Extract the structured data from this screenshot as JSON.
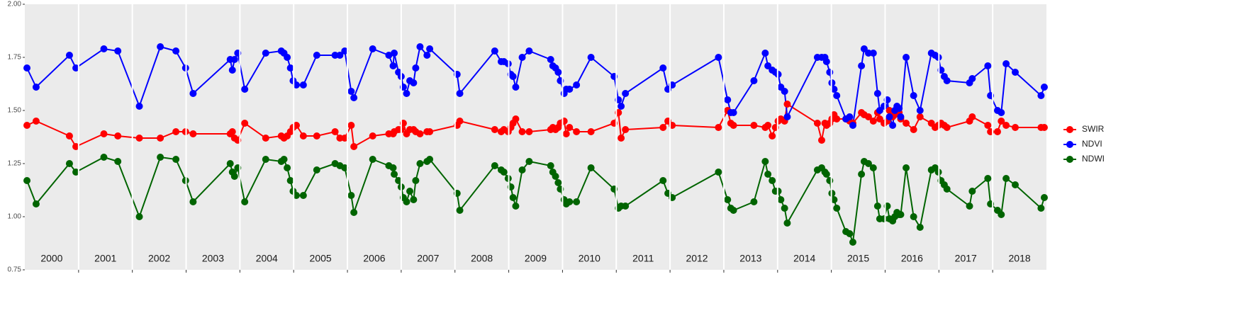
{
  "chart_data": {
    "type": "line",
    "x": [
      2000.04,
      2000.21,
      2000.83,
      2000.95,
      2001.47,
      2001.73,
      2002.13,
      2002.52,
      2002.81,
      2002.99,
      2003.13,
      2003.82,
      2003.86,
      2003.9,
      2003.96,
      2004.09,
      2004.48,
      2004.77,
      2004.82,
      2004.88,
      2004.94,
      2004.99,
      2005.05,
      2005.18,
      2005.43,
      2005.77,
      2005.86,
      2005.95,
      2006.07,
      2006.12,
      2006.47,
      2006.77,
      2006.85,
      2006.87,
      2006.95,
      2007.0,
      2007.04,
      2007.1,
      2007.16,
      2007.23,
      2007.27,
      2007.35,
      2007.48,
      2007.53,
      2008.04,
      2008.09,
      2008.74,
      2008.86,
      2008.91,
      2008.99,
      2009.04,
      2009.08,
      2009.13,
      2009.25,
      2009.38,
      2009.78,
      2009.82,
      2009.87,
      2009.92,
      2009.96,
      2010.03,
      2010.07,
      2010.13,
      2010.26,
      2010.53,
      2010.96,
      2011.04,
      2011.09,
      2011.17,
      2011.87,
      2011.96,
      2012.04,
      2012.9,
      2013.07,
      2013.13,
      2013.18,
      2013.56,
      2013.77,
      2013.82,
      2013.9,
      2013.96,
      2014.01,
      2014.06,
      2014.13,
      2014.18,
      2014.74,
      2014.82,
      2014.88,
      2014.91,
      2014.97,
      2015.01,
      2015.05,
      2015.1,
      2015.27,
      2015.34,
      2015.4,
      2015.56,
      2015.61,
      2015.69,
      2015.78,
      2015.86,
      2015.9,
      2015.98,
      2016.04,
      2016.08,
      2016.14,
      2016.18,
      2016.22,
      2016.26,
      2016.29,
      2016.39,
      2016.53,
      2016.65,
      2016.86,
      2016.93,
      2016.99,
      2017.04,
      2017.1,
      2017.15,
      2017.57,
      2017.62,
      2017.91,
      2017.96,
      2018.09,
      2018.16,
      2018.25,
      2018.42,
      2018.9,
      2018.96
    ],
    "series": [
      {
        "name": "SWIR",
        "color": "#ff0000",
        "values": [
          1.43,
          1.45,
          1.38,
          1.33,
          1.39,
          1.38,
          1.37,
          1.37,
          1.4,
          1.4,
          1.39,
          1.39,
          1.4,
          1.37,
          1.36,
          1.44,
          1.37,
          1.38,
          1.37,
          1.38,
          1.4,
          1.42,
          1.43,
          1.38,
          1.38,
          1.4,
          1.37,
          1.37,
          1.43,
          1.33,
          1.38,
          1.39,
          1.39,
          1.4,
          1.41,
          1.41,
          1.44,
          1.39,
          1.41,
          1.41,
          1.4,
          1.39,
          1.4,
          1.4,
          1.43,
          1.45,
          1.41,
          1.4,
          1.41,
          1.4,
          1.42,
          1.44,
          1.46,
          1.4,
          1.4,
          1.41,
          1.42,
          1.41,
          1.42,
          1.44,
          1.45,
          1.39,
          1.42,
          1.4,
          1.4,
          1.44,
          1.49,
          1.37,
          1.41,
          1.42,
          1.45,
          1.43,
          1.42,
          1.5,
          1.44,
          1.43,
          1.43,
          1.42,
          1.43,
          1.38,
          1.42,
          1.45,
          1.46,
          1.45,
          1.53,
          1.44,
          1.36,
          1.44,
          1.43,
          1.44,
          1.46,
          1.48,
          1.46,
          1.46,
          1.45,
          1.44,
          1.49,
          1.48,
          1.47,
          1.45,
          1.49,
          1.46,
          1.44,
          1.45,
          1.5,
          1.47,
          1.48,
          1.49,
          1.49,
          1.46,
          1.44,
          1.41,
          1.47,
          1.44,
          1.42,
          1.43,
          1.44,
          1.43,
          1.42,
          1.45,
          1.47,
          1.43,
          1.4,
          1.4,
          1.45,
          1.43,
          1.42,
          1.42,
          1.42
        ]
      },
      {
        "name": "NDVI",
        "color": "#0000ff",
        "values": [
          1.7,
          1.61,
          1.76,
          1.7,
          1.79,
          1.78,
          1.52,
          1.8,
          1.78,
          1.7,
          1.58,
          1.74,
          1.69,
          1.74,
          1.77,
          1.6,
          1.77,
          1.78,
          1.77,
          1.75,
          1.7,
          1.64,
          1.62,
          1.62,
          1.76,
          1.76,
          1.76,
          1.78,
          1.59,
          1.56,
          1.79,
          1.76,
          1.71,
          1.77,
          1.68,
          1.66,
          1.61,
          1.58,
          1.64,
          1.63,
          1.7,
          1.8,
          1.76,
          1.79,
          1.67,
          1.58,
          1.78,
          1.73,
          1.73,
          1.72,
          1.67,
          1.66,
          1.61,
          1.75,
          1.78,
          1.74,
          1.71,
          1.7,
          1.68,
          1.64,
          1.58,
          1.6,
          1.6,
          1.62,
          1.75,
          1.66,
          1.55,
          1.52,
          1.58,
          1.7,
          1.6,
          1.62,
          1.75,
          1.55,
          1.49,
          1.49,
          1.64,
          1.77,
          1.71,
          1.69,
          1.68,
          1.67,
          1.61,
          1.59,
          1.47,
          1.75,
          1.75,
          1.75,
          1.73,
          1.68,
          1.63,
          1.6,
          1.57,
          1.46,
          1.47,
          1.43,
          1.71,
          1.79,
          1.77,
          1.77,
          1.58,
          1.5,
          1.52,
          1.55,
          1.47,
          1.43,
          1.5,
          1.52,
          1.51,
          1.47,
          1.75,
          1.57,
          1.5,
          1.77,
          1.76,
          1.75,
          1.69,
          1.66,
          1.64,
          1.63,
          1.65,
          1.71,
          1.57,
          1.5,
          1.49,
          1.72,
          1.68,
          1.57,
          1.61
        ]
      },
      {
        "name": "NDWI",
        "color": "#006400",
        "values": [
          1.17,
          1.06,
          1.25,
          1.21,
          1.28,
          1.26,
          1.0,
          1.28,
          1.27,
          1.17,
          1.07,
          1.25,
          1.21,
          1.19,
          1.23,
          1.07,
          1.27,
          1.26,
          1.27,
          1.23,
          1.17,
          1.12,
          1.1,
          1.1,
          1.22,
          1.25,
          1.24,
          1.23,
          1.1,
          1.02,
          1.27,
          1.24,
          1.23,
          1.2,
          1.17,
          1.14,
          1.09,
          1.07,
          1.12,
          1.08,
          1.17,
          1.25,
          1.26,
          1.27,
          1.11,
          1.03,
          1.24,
          1.22,
          1.21,
          1.18,
          1.14,
          1.09,
          1.05,
          1.22,
          1.26,
          1.24,
          1.21,
          1.19,
          1.16,
          1.13,
          1.08,
          1.06,
          1.07,
          1.07,
          1.23,
          1.13,
          1.04,
          1.05,
          1.05,
          1.17,
          1.11,
          1.09,
          1.21,
          1.08,
          1.04,
          1.03,
          1.07,
          1.26,
          1.2,
          1.17,
          1.12,
          1.12,
          1.08,
          1.04,
          0.97,
          1.22,
          1.23,
          1.21,
          1.2,
          1.17,
          1.11,
          1.08,
          1.04,
          0.93,
          0.92,
          0.88,
          1.2,
          1.26,
          1.25,
          1.23,
          1.05,
          0.99,
          0.99,
          1.05,
          0.99,
          0.98,
          1.0,
          1.02,
          1.01,
          1.01,
          1.23,
          1.0,
          0.95,
          1.22,
          1.23,
          1.21,
          1.17,
          1.15,
          1.13,
          1.05,
          1.12,
          1.18,
          1.06,
          1.03,
          1.01,
          1.18,
          1.15,
          1.04,
          1.09
        ]
      }
    ],
    "xlim": [
      2000,
      2019
    ],
    "xticks": [
      {
        "value": 2000.5,
        "label": "2000"
      },
      {
        "value": 2001.5,
        "label": "2001"
      },
      {
        "value": 2002.5,
        "label": "2002"
      },
      {
        "value": 2003.5,
        "label": "2003"
      },
      {
        "value": 2004.5,
        "label": "2004"
      },
      {
        "value": 2005.5,
        "label": "2005"
      },
      {
        "value": 2006.5,
        "label": "2006"
      },
      {
        "value": 2007.5,
        "label": "2007"
      },
      {
        "value": 2008.5,
        "label": "2008"
      },
      {
        "value": 2009.5,
        "label": "2009"
      },
      {
        "value": 2010.5,
        "label": "2010"
      },
      {
        "value": 2011.5,
        "label": "2011"
      },
      {
        "value": 2012.5,
        "label": "2012"
      },
      {
        "value": 2013.5,
        "label": "2013"
      },
      {
        "value": 2014.5,
        "label": "2014"
      },
      {
        "value": 2015.5,
        "label": "2015"
      },
      {
        "value": 2016.5,
        "label": "2016"
      },
      {
        "value": 2017.5,
        "label": "2017"
      },
      {
        "value": 2018.5,
        "label": "2018"
      }
    ],
    "year_separators": [
      2001,
      2002,
      2003,
      2004,
      2005,
      2006,
      2007,
      2008,
      2009,
      2010,
      2011,
      2012,
      2013,
      2014,
      2015,
      2016,
      2017,
      2018
    ],
    "ylim": [
      0.75,
      2.0
    ],
    "yticks": [
      {
        "value": 0.75,
        "label": "0.75"
      },
      1.25,
      {
        "value": 1.0,
        "label": "1.00"
      },
      {
        "value": 1.5,
        "label": "1.50"
      },
      1.75,
      {
        "value": 2.0,
        "label": "2.00"
      }
    ],
    "legend_position": "right"
  }
}
